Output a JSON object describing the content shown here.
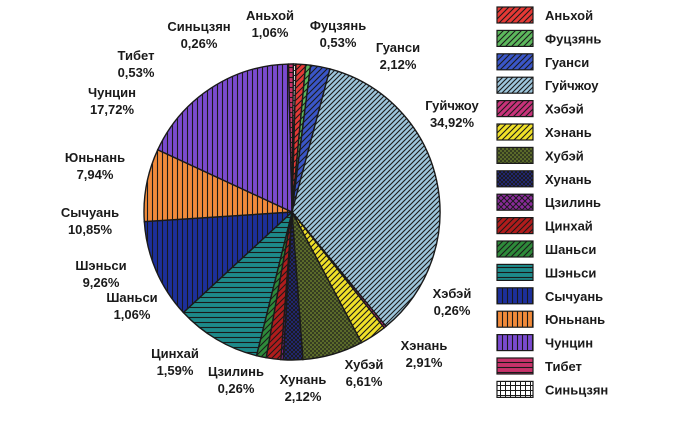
{
  "chart_data": {
    "type": "pie",
    "title": "",
    "legend_position": "right",
    "unit": "%",
    "slices": [
      {
        "name": "Аньхой",
        "value": 1.06,
        "label": "1,06%",
        "color": "#e53935",
        "pattern": "diag-right"
      },
      {
        "name": "Фуцзянь",
        "value": 0.53,
        "label": "0,53%",
        "color": "#5cb85c",
        "pattern": "diag-right"
      },
      {
        "name": "Гуанси",
        "value": 2.12,
        "label": "2,12%",
        "color": "#3a56c8",
        "pattern": "diag-right"
      },
      {
        "name": "Гуйчжоу",
        "value": 34.92,
        "label": "34,92%",
        "color": "#9ec6dc",
        "pattern": "diag-right-dense"
      },
      {
        "name": "Хэбэй",
        "value": 0.26,
        "label": "0,26%",
        "color": "#c8327a",
        "pattern": "diag-right"
      },
      {
        "name": "Хэнань",
        "value": 2.91,
        "label": "2,91%",
        "color": "#f0e028",
        "pattern": "diag-right"
      },
      {
        "name": "Хубэй",
        "value": 6.61,
        "label": "6,61%",
        "color": "#5a6a2a",
        "pattern": "dots"
      },
      {
        "name": "Хунань",
        "value": 2.12,
        "label": "2,12%",
        "color": "#232a8a",
        "pattern": "cross-dense"
      },
      {
        "name": "Цзилинь",
        "value": 0.26,
        "label": "0,26%",
        "color": "#8a2a9a",
        "pattern": "cross"
      },
      {
        "name": "Цинхай",
        "value": 1.59,
        "label": "1,59%",
        "color": "#b01c1c",
        "pattern": "diag-right"
      },
      {
        "name": "Шаньси",
        "value": 1.06,
        "label": "1,06%",
        "color": "#2e8a3a",
        "pattern": "diag-right"
      },
      {
        "name": "Шэньси",
        "value": 9.26,
        "label": "9,26%",
        "color": "#1d8a8a",
        "pattern": "horizontal"
      },
      {
        "name": "Сычуань",
        "value": 10.85,
        "label": "10,85%",
        "color": "#1c2f9a",
        "pattern": "vertical"
      },
      {
        "name": "Юньнань",
        "value": 7.94,
        "label": "7,94%",
        "color": "#f08a3a",
        "pattern": "vertical"
      },
      {
        "name": "Чунцин",
        "value": 17.72,
        "label": "17,72%",
        "color": "#7a4ad0",
        "pattern": "vertical"
      },
      {
        "name": "Тибет",
        "value": 0.53,
        "label": "0,53%",
        "color": "#c8326a",
        "pattern": "horizontal"
      },
      {
        "name": "Синьцзян",
        "value": 0.26,
        "label": "0,26%",
        "color": "#ffffff",
        "pattern": "grid"
      }
    ]
  }
}
